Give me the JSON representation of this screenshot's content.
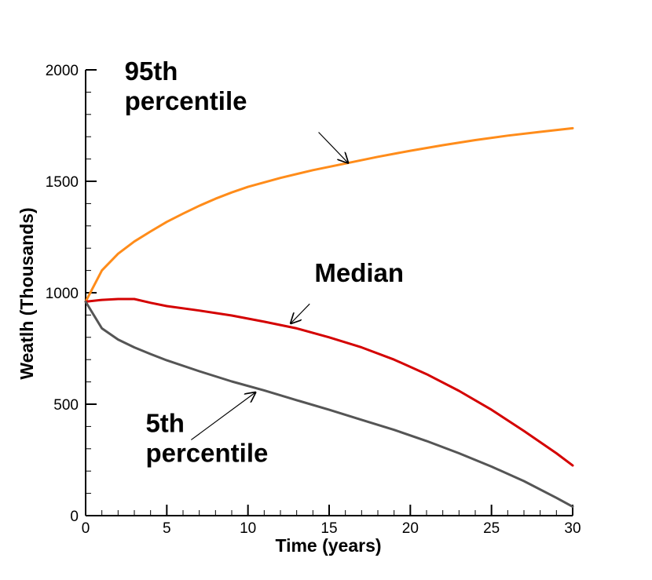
{
  "chart_data": {
    "type": "line",
    "title": "",
    "xlabel": "Time (years)",
    "ylabel": "Weatlh (Thousands)",
    "xlim": [
      0,
      30
    ],
    "ylim": [
      0,
      2000
    ],
    "xticks": [
      0,
      5,
      10,
      15,
      20,
      25,
      30
    ],
    "xtick_labels": [
      "0",
      "5",
      "10",
      "15",
      "20",
      "25",
      "30"
    ],
    "yticks": [
      0,
      500,
      1000,
      1500,
      2000
    ],
    "ytick_labels": [
      "0",
      "500",
      "1000",
      "1500",
      "2000"
    ],
    "grid": false,
    "legend": "none",
    "series": [
      {
        "key": "p95",
        "color": "#FF8C1A",
        "x": [
          0,
          1,
          2,
          3,
          4,
          5,
          6,
          7,
          8,
          9,
          10,
          12,
          14,
          16,
          18,
          20,
          22,
          24,
          26,
          28,
          30
        ],
        "values": [
          960,
          1100,
          1175,
          1230,
          1275,
          1318,
          1355,
          1390,
          1422,
          1450,
          1475,
          1515,
          1550,
          1580,
          1610,
          1637,
          1662,
          1685,
          1705,
          1722,
          1738
        ]
      },
      {
        "key": "median",
        "color": "#D40000",
        "x": [
          0,
          1,
          2,
          3,
          4,
          5,
          7,
          9,
          11,
          13,
          15,
          17,
          19,
          21,
          23,
          25,
          27,
          29,
          30
        ],
        "values": [
          960,
          968,
          972,
          972,
          955,
          940,
          920,
          898,
          870,
          840,
          800,
          755,
          700,
          635,
          560,
          475,
          380,
          280,
          225
        ]
      },
      {
        "key": "p5",
        "color": "#555555",
        "x": [
          0,
          1,
          2,
          3,
          4,
          5,
          7,
          9,
          11,
          13,
          15,
          17,
          19,
          21,
          23,
          25,
          27,
          29,
          30
        ],
        "values": [
          960,
          840,
          790,
          755,
          725,
          697,
          648,
          602,
          562,
          518,
          475,
          430,
          385,
          335,
          280,
          220,
          155,
          80,
          40
        ]
      }
    ],
    "annotations": [
      {
        "key": "p95",
        "lines": [
          "95th",
          "percentile"
        ],
        "text_anchor_x": 2.4,
        "text_anchor_y": 1955,
        "arrow_from": [
          14.35,
          1720
        ],
        "arrow_to": [
          16.2,
          1580
        ]
      },
      {
        "key": "median",
        "lines": [
          "Median"
        ],
        "text_anchor_x": 14.1,
        "text_anchor_y": 1050,
        "arrow_from": [
          13.8,
          950
        ],
        "arrow_to": [
          12.6,
          860
        ]
      },
      {
        "key": "p5",
        "lines": [
          "5th",
          "percentile"
        ],
        "text_anchor_x": 3.7,
        "text_anchor_y": 375,
        "arrow_from": [
          6.5,
          340
        ],
        "arrow_to": [
          10.5,
          555
        ]
      }
    ]
  }
}
